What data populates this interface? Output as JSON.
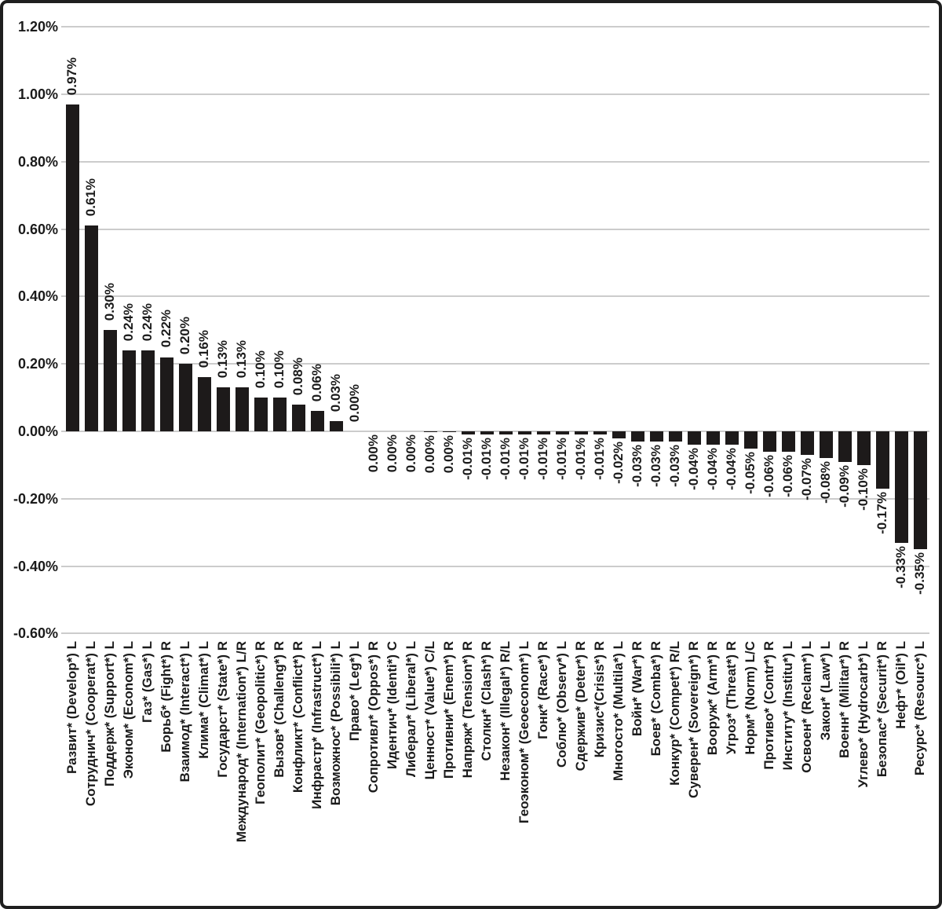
{
  "figure": {
    "background": "#ffffff",
    "border_color": "#1f1f1f",
    "bar_color": "#1d1a1a",
    "gridline_color": "#cccccc",
    "text_color": "#1b1b1b"
  },
  "chart_data": {
    "type": "bar",
    "title": "",
    "xlabel": "",
    "ylabel": "",
    "legend": null,
    "grid": true,
    "y_axis": {
      "range": [
        -0.6,
        1.2
      ],
      "tick_step": 0.2,
      "ticks": [
        {
          "label": "1.20%",
          "value": 1.2
        },
        {
          "label": "1.00%",
          "value": 1.0
        },
        {
          "label": "0.80%",
          "value": 0.8
        },
        {
          "label": "0.60%",
          "value": 0.6
        },
        {
          "label": "0.40%",
          "value": 0.4
        },
        {
          "label": "0.20%",
          "value": 0.2
        },
        {
          "label": "0.00%",
          "value": 0.0
        },
        {
          "label": "-0.20%",
          "value": -0.2
        },
        {
          "label": "-0.40%",
          "value": -0.4
        },
        {
          "label": "-0.60%",
          "value": -0.6
        }
      ]
    },
    "bars": [
      {
        "category": "Развит* (Develop*) L",
        "value_label": "0.97%",
        "value": 0.97,
        "label_side": "above"
      },
      {
        "category": "Сотруднич* (Cooperat*) L",
        "value_label": "0.61%",
        "value": 0.61,
        "label_side": "above"
      },
      {
        "category": "Поддерж* (Support*) L",
        "value_label": "0.30%",
        "value": 0.3,
        "label_side": "above"
      },
      {
        "category": "Эконом* (Econom*) L",
        "value_label": "0.24%",
        "value": 0.24,
        "label_side": "above"
      },
      {
        "category": "Газ* (Gas*) L",
        "value_label": "0.24%",
        "value": 0.24,
        "label_side": "above"
      },
      {
        "category": "Борьб* (Fight*) R",
        "value_label": "0.22%",
        "value": 0.22,
        "label_side": "above"
      },
      {
        "category": "Взаимод* (Interact*) L",
        "value_label": "0.20%",
        "value": 0.2,
        "label_side": "above"
      },
      {
        "category": "Клима* (Climat*) L",
        "value_label": "0.16%",
        "value": 0.16,
        "label_side": "above"
      },
      {
        "category": "Государст* (State*) R",
        "value_label": "0.13%",
        "value": 0.13,
        "label_side": "above"
      },
      {
        "category": "Международ* (Internation*) L/R",
        "value_label": "0.13%",
        "value": 0.13,
        "label_side": "above"
      },
      {
        "category": "Геополит* (Geopolitic*) R",
        "value_label": "0.10%",
        "value": 0.1,
        "label_side": "above"
      },
      {
        "category": "Вызов* (Challeng*) R",
        "value_label": "0.10%",
        "value": 0.1,
        "label_side": "above"
      },
      {
        "category": "Конфликт* (Conflict*) R",
        "value_label": "0.08%",
        "value": 0.08,
        "label_side": "above"
      },
      {
        "category": "Инфрастр* (Infrastruct*) L",
        "value_label": "0.06%",
        "value": 0.06,
        "label_side": "above"
      },
      {
        "category": "Возможнос* (Possibili*) L",
        "value_label": "0.03%",
        "value": 0.03,
        "label_side": "above"
      },
      {
        "category": "Право* (Leg*) L",
        "value_label": "0.00%",
        "value": 0.0,
        "label_side": "above"
      },
      {
        "category": "Сопротивл* (Oppos*) R",
        "value_label": "0.00%",
        "value": 0.0,
        "label_side": "below"
      },
      {
        "category": "Идентич* (Identi*) C",
        "value_label": "0.00%",
        "value": 0.0,
        "label_side": "below"
      },
      {
        "category": "Либерал* (Liberal*) L",
        "value_label": "0.00%",
        "value": 0.0,
        "label_side": "below"
      },
      {
        "category": "Ценност* (Value*) C/L",
        "value_label": "0.00%",
        "value": -0.002,
        "label_side": "below"
      },
      {
        "category": "Противни* (Enem*) R",
        "value_label": "0.00%",
        "value": -0.003,
        "label_side": "below"
      },
      {
        "category": "Напряж* (Tension*) R",
        "value_label": "-0.01%",
        "value": -0.01,
        "label_side": "below"
      },
      {
        "category": "Столкн* (Clash*) R",
        "value_label": "-0.01%",
        "value": -0.01,
        "label_side": "below"
      },
      {
        "category": "Незакон* (Illegal*) R/L",
        "value_label": "-0.01%",
        "value": -0.01,
        "label_side": "below"
      },
      {
        "category": "Геоэконом* (Geoeconom*) L",
        "value_label": "-0.01%",
        "value": -0.01,
        "label_side": "below"
      },
      {
        "category": "Гонк* (Race*) R",
        "value_label": "-0.01%",
        "value": -0.01,
        "label_side": "below"
      },
      {
        "category": "Соблю* (Observ*) L",
        "value_label": "-0.01%",
        "value": -0.01,
        "label_side": "below"
      },
      {
        "category": "Сдержив* (Deter*) R",
        "value_label": "-0.01%",
        "value": -0.01,
        "label_side": "below"
      },
      {
        "category": "Кризис*(Crisis*) R",
        "value_label": "-0.01%",
        "value": -0.01,
        "label_side": "below"
      },
      {
        "category": "Многосто* (Multila*) L",
        "value_label": "-0.02%",
        "value": -0.02,
        "label_side": "below"
      },
      {
        "category": "Войн* (War*) R",
        "value_label": "-0.03%",
        "value": -0.03,
        "label_side": "below"
      },
      {
        "category": "Боев* (Comba*) R",
        "value_label": "-0.03%",
        "value": -0.03,
        "label_side": "below"
      },
      {
        "category": "Конкур* (Compet*) R/L",
        "value_label": "-0.03%",
        "value": -0.03,
        "label_side": "below"
      },
      {
        "category": "Суверен* (Sovereign*) R",
        "value_label": "-0.04%",
        "value": -0.04,
        "label_side": "below"
      },
      {
        "category": "Вооруж* (Arm*) R",
        "value_label": "-0.04%",
        "value": -0.04,
        "label_side": "below"
      },
      {
        "category": "Угроз* (Threat*) R",
        "value_label": "-0.04%",
        "value": -0.04,
        "label_side": "below"
      },
      {
        "category": "Норм* (Norm) L/C",
        "value_label": "-0.05%",
        "value": -0.05,
        "label_side": "below"
      },
      {
        "category": "Противо* (Contr*) R",
        "value_label": "-0.06%",
        "value": -0.06,
        "label_side": "below"
      },
      {
        "category": "Институ* (Institu*) L",
        "value_label": "-0.06%",
        "value": -0.06,
        "label_side": "below"
      },
      {
        "category": "Освоен* (Reclam*) L",
        "value_label": "-0.07%",
        "value": -0.07,
        "label_side": "below"
      },
      {
        "category": "Закон* (Law*) L",
        "value_label": "-0.08%",
        "value": -0.08,
        "label_side": "below"
      },
      {
        "category": "Военн* (Militar*) R",
        "value_label": "-0.09%",
        "value": -0.09,
        "label_side": "below"
      },
      {
        "category": "Углево* (Hydrocarb*) L",
        "value_label": "-0.10%",
        "value": -0.1,
        "label_side": "below"
      },
      {
        "category": "Безопас* (Securit*) R",
        "value_label": "-0.17%",
        "value": -0.17,
        "label_side": "below"
      },
      {
        "category": "Нефт* (Oil*) L",
        "value_label": "-0.33%",
        "value": -0.33,
        "label_side": "below"
      },
      {
        "category": "Ресурс* (Resourc*) L",
        "value_label": "-0.35%",
        "value": -0.35,
        "label_side": "below"
      }
    ]
  }
}
